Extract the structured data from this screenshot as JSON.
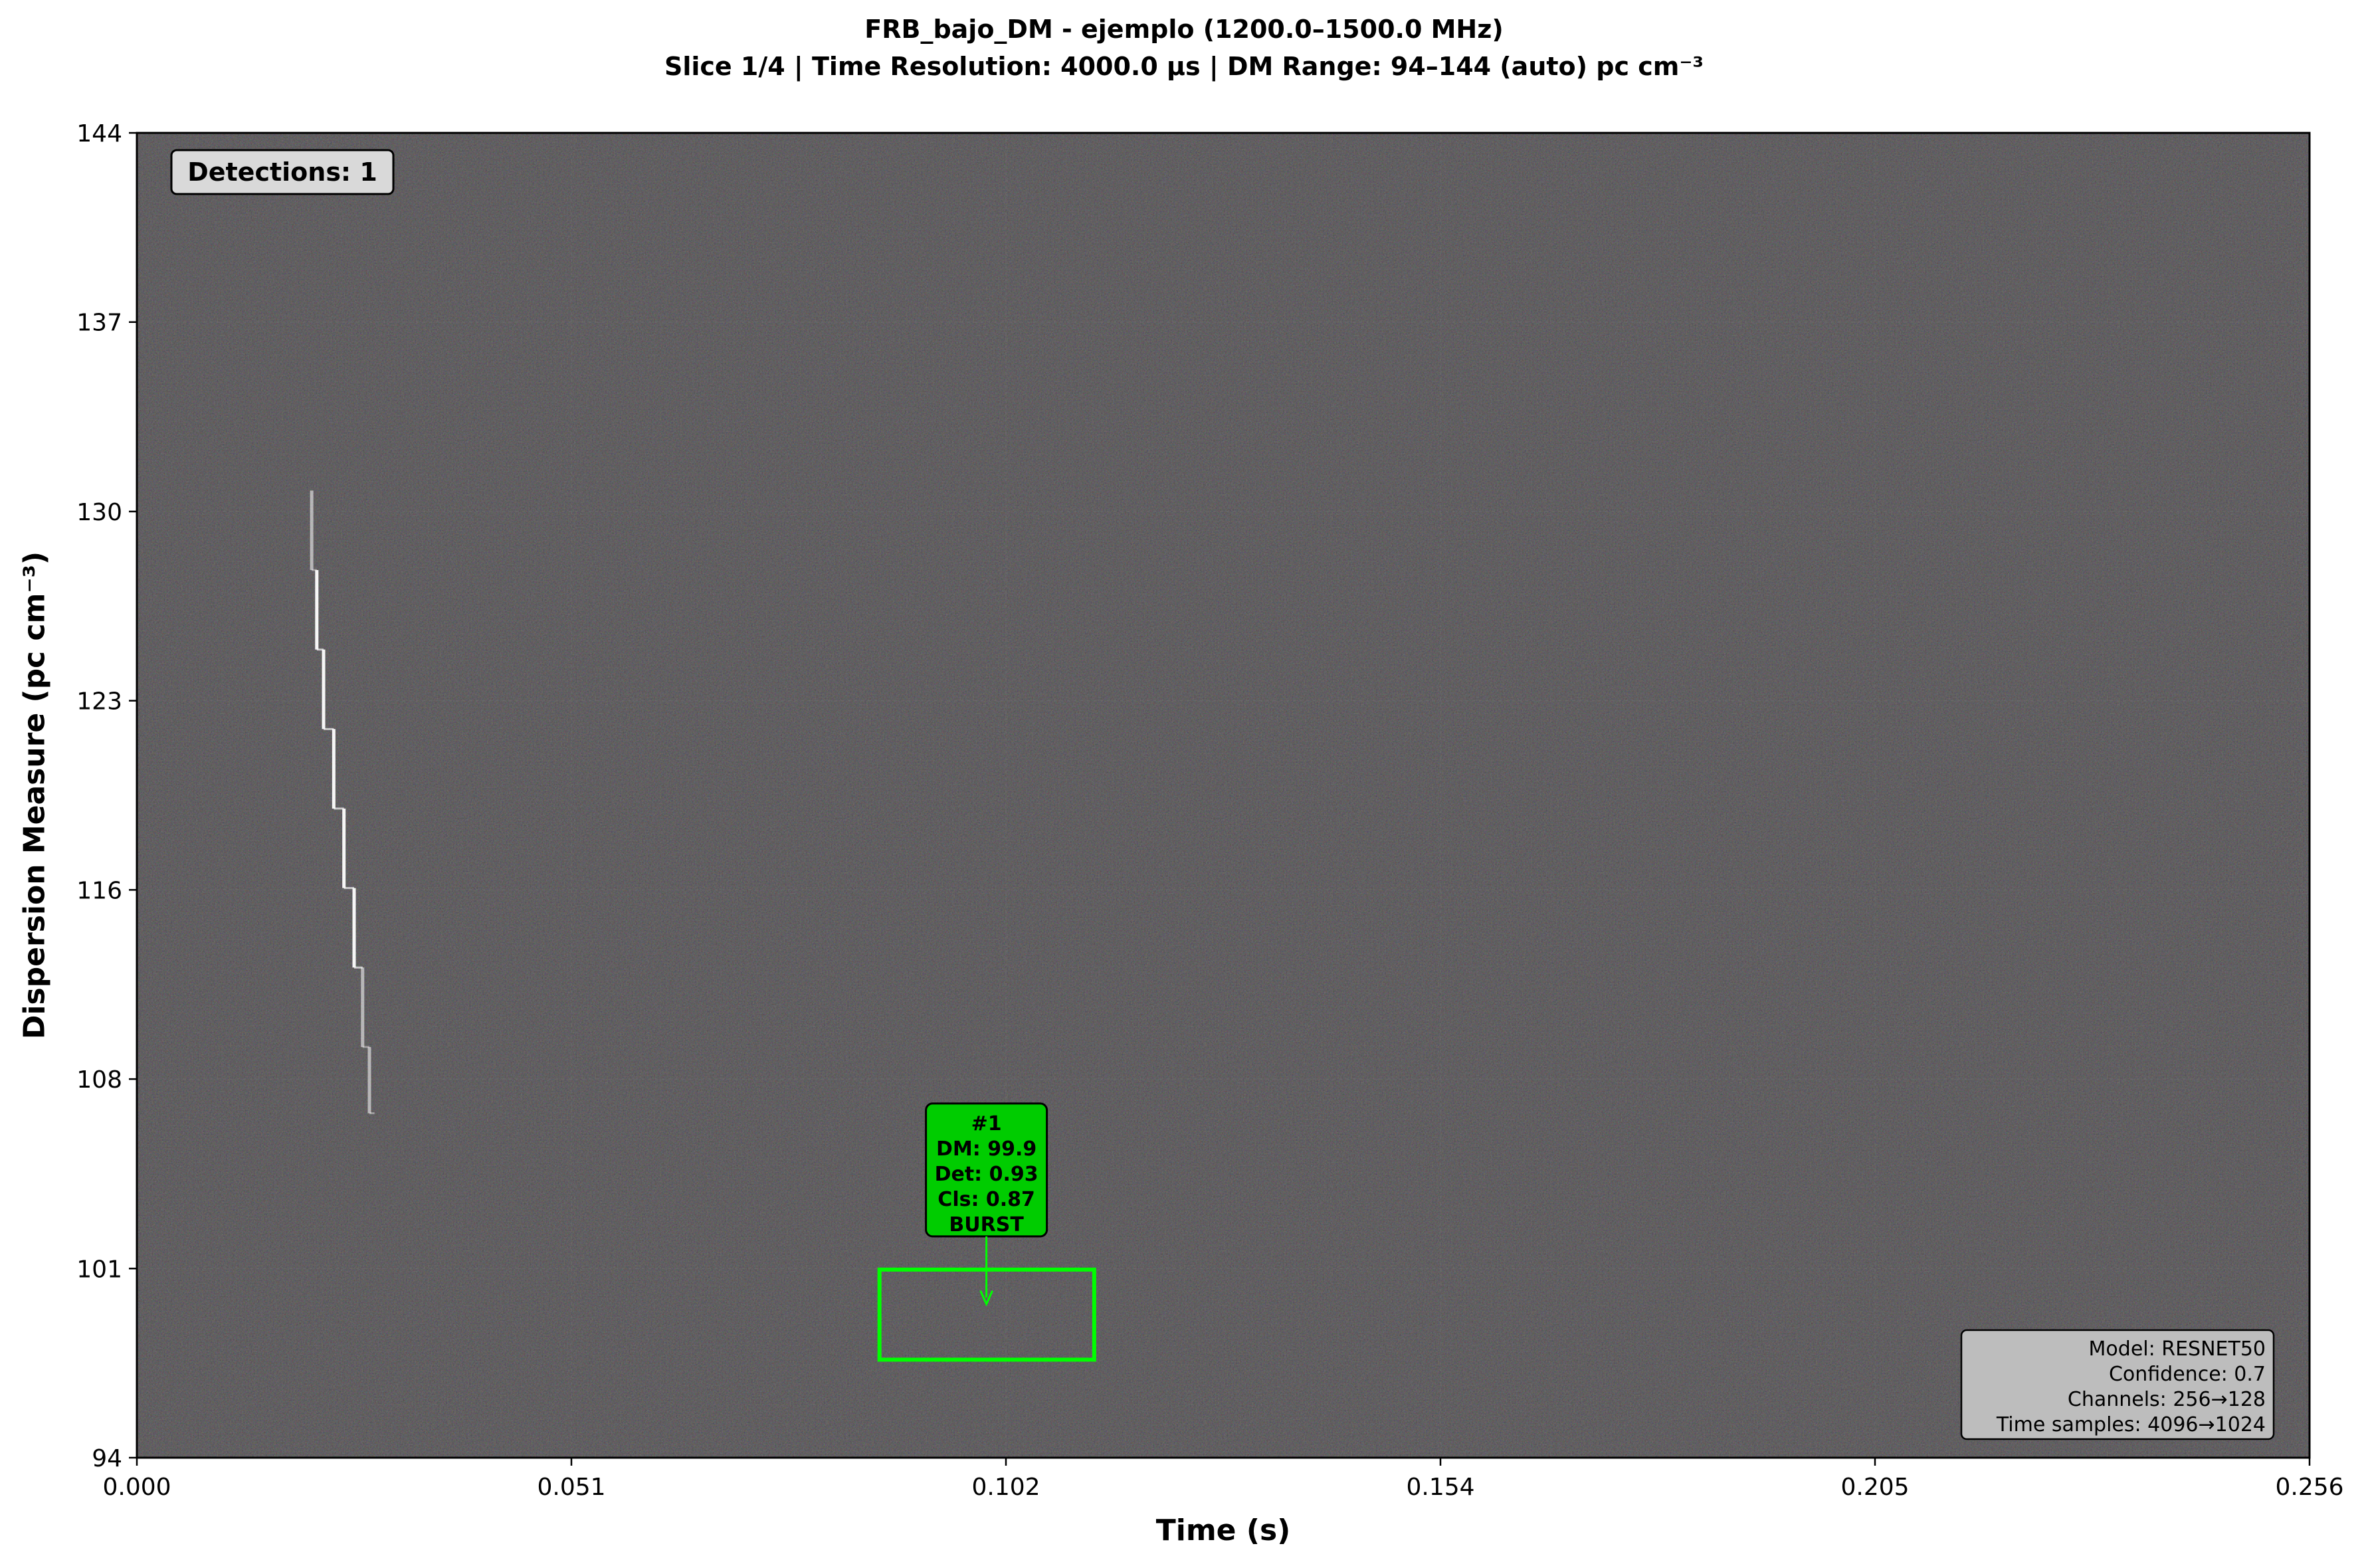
{
  "chart_data": {
    "type": "heatmap",
    "title": "FRB_bajo_DM - ejemplo (1200.0–1500.0 MHz)",
    "subtitle": "Slice 1/4 | Time Resolution: 4000.0 μs | DM Range: 94–144 (auto) pc cm⁻³",
    "xlabel": "Time (s)",
    "ylabel": "Dispersion Measure (pc cm⁻³)",
    "xlim": [
      0.0,
      0.256
    ],
    "ylim": [
      94,
      144
    ],
    "x_ticks": [
      "0.000",
      "0.051",
      "0.102",
      "0.154",
      "0.205",
      "0.256"
    ],
    "x_tick_values": [
      0.0,
      0.0512,
      0.1024,
      0.1536,
      0.2048,
      0.256
    ],
    "y_ticks": [
      "94",
      "101",
      "108",
      "116",
      "123",
      "130",
      "137",
      "144"
    ],
    "y_tick_values": [
      94,
      101.14,
      108.29,
      115.43,
      122.57,
      129.71,
      136.86,
      144
    ],
    "grid": true,
    "colormap": "dark noise (green/purple tint)",
    "detections_label": "Detections: 1",
    "detection": {
      "box": {
        "x0": 0.0875,
        "x1": 0.1128,
        "y0": 97.7,
        "y1": 101.1
      },
      "arrow_to": {
        "x": 0.1001,
        "y": 99.8
      },
      "label_lines": [
        "#1",
        "DM: 99.9",
        "Det: 0.93",
        "Cls: 0.87",
        "BURST"
      ],
      "color": "#00ff00",
      "label_bg": "#00cc00"
    },
    "signal_track": {
      "color": "#ffffff",
      "points": [
        {
          "x": 0.0206,
          "y": 130.5
        },
        {
          "x": 0.0212,
          "y": 127.5
        },
        {
          "x": 0.022,
          "y": 124.5
        },
        {
          "x": 0.0232,
          "y": 121.5
        },
        {
          "x": 0.0244,
          "y": 118.5
        },
        {
          "x": 0.0256,
          "y": 115.5
        },
        {
          "x": 0.0266,
          "y": 112.5
        },
        {
          "x": 0.0274,
          "y": 109.5
        },
        {
          "x": 0.028,
          "y": 107.0
        }
      ]
    },
    "info_box": {
      "lines": [
        "Model: RESNET50",
        "Confidence: 0.7",
        "Channels: 256→128",
        "Time samples: 4096→1024"
      ]
    }
  },
  "colors": {
    "background": "#262626",
    "noise_green": "#2a3a2a",
    "noise_purple": "#3a2a3a",
    "grid": "#6e6e6e"
  }
}
